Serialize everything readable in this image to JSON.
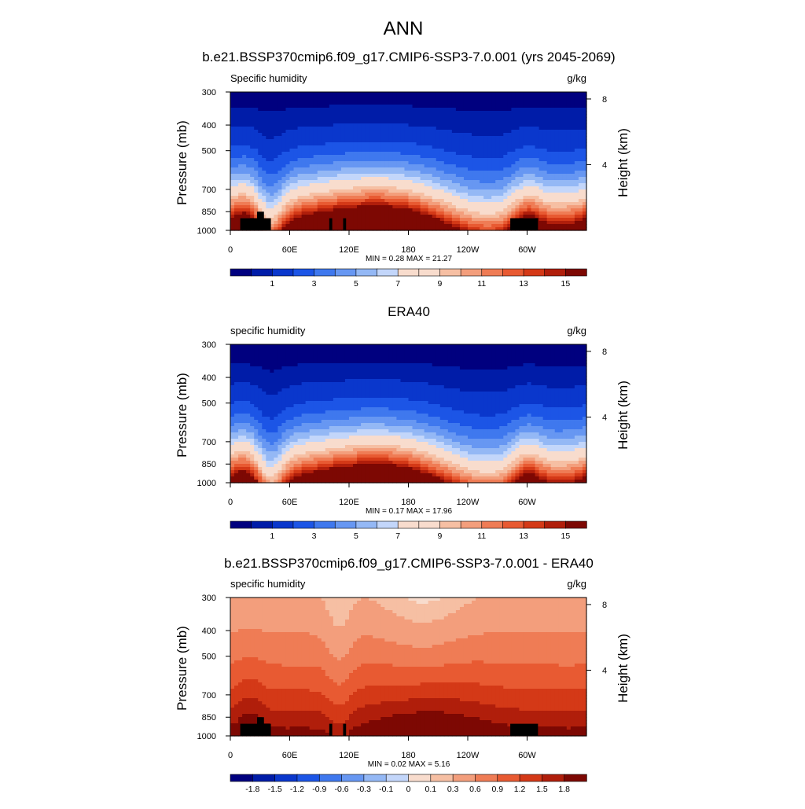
{
  "page": {
    "title": "ANN"
  },
  "chart_data": [
    {
      "type": "heatmap",
      "title": "b.e21.BSSP370cmip6.f09_g17.CMIP6-SSP3-7.0.001 (yrs 2045-2069)",
      "left_label": "Specific humidity",
      "right_label": "g/kg",
      "ylabel": "Pressure (mb)",
      "ylabel_right": "Height (km)",
      "x_ticks": [
        "0",
        "60E",
        "120E",
        "180",
        "120W",
        "60W"
      ],
      "x_tick_values": [
        0,
        60,
        120,
        180,
        240,
        300
      ],
      "xlim": [
        0,
        360
      ],
      "y_ticks": [
        "300",
        "400",
        "500",
        "700",
        "850",
        "1000"
      ],
      "y_tick_values": [
        300,
        400,
        500,
        700,
        850,
        1000
      ],
      "ylim": [
        1000,
        300
      ],
      "height_ticks": [
        "8",
        "4"
      ],
      "height_tick_values": [
        8,
        4
      ],
      "stats": {
        "min_label": "MIN =",
        "min": "0.28",
        "max_label": "MAX =",
        "max": "21.27"
      },
      "colorbar": {
        "levels": [
          0.5,
          1,
          2,
          3,
          4,
          5,
          6,
          7,
          8,
          9,
          10,
          11,
          12,
          13,
          14,
          15
        ],
        "labels": [
          "1",
          "3",
          "5",
          "7",
          "9",
          "11",
          "13",
          "15"
        ],
        "label_values": [
          1,
          3,
          5,
          7,
          9,
          11,
          13,
          15
        ]
      },
      "field": "model"
    },
    {
      "type": "heatmap",
      "title": "ERA40",
      "left_label": "specific humidity",
      "right_label": "g/kg",
      "ylabel": "Pressure (mb)",
      "ylabel_right": "Height (km)",
      "x_ticks": [
        "0",
        "60E",
        "120E",
        "180",
        "120W",
        "60W"
      ],
      "x_tick_values": [
        0,
        60,
        120,
        180,
        240,
        300
      ],
      "xlim": [
        0,
        360
      ],
      "y_ticks": [
        "300",
        "400",
        "500",
        "700",
        "850",
        "1000"
      ],
      "y_tick_values": [
        300,
        400,
        500,
        700,
        850,
        1000
      ],
      "ylim": [
        1000,
        300
      ],
      "height_ticks": [
        "8",
        "4"
      ],
      "height_tick_values": [
        8,
        4
      ],
      "stats": {
        "min_label": "MIN =",
        "min": "0.17",
        "max_label": "MAX =",
        "max": "17.96"
      },
      "colorbar": {
        "levels": [
          0.5,
          1,
          2,
          3,
          4,
          5,
          6,
          7,
          8,
          9,
          10,
          11,
          12,
          13,
          14,
          15
        ],
        "labels": [
          "1",
          "3",
          "5",
          "7",
          "9",
          "11",
          "13",
          "15"
        ],
        "label_values": [
          1,
          3,
          5,
          7,
          9,
          11,
          13,
          15
        ]
      },
      "field": "obs"
    },
    {
      "type": "heatmap",
      "title": "b.e21.BSSP370cmip6.f09_g17.CMIP6-SSP3-7.0.001 - ERA40",
      "left_label": "specific humidity",
      "right_label": "g/kg",
      "ylabel": "Pressure (mb)",
      "ylabel_right": "Height (km)",
      "x_ticks": [
        "0",
        "60E",
        "120E",
        "180",
        "120W",
        "60W"
      ],
      "x_tick_values": [
        0,
        60,
        120,
        180,
        240,
        300
      ],
      "xlim": [
        0,
        360
      ],
      "y_ticks": [
        "300",
        "400",
        "500",
        "700",
        "850",
        "1000"
      ],
      "y_tick_values": [
        300,
        400,
        500,
        700,
        850,
        1000
      ],
      "ylim": [
        1000,
        300
      ],
      "height_ticks": [
        "8",
        "4"
      ],
      "height_tick_values": [
        8,
        4
      ],
      "stats": {
        "min_label": "MIN =",
        "min": "0.02",
        "max_label": "MAX =",
        "max": "5.16"
      },
      "colorbar": {
        "levels": [
          -1.8,
          -1.5,
          -1.2,
          -0.9,
          -0.6,
          -0.3,
          -0.1,
          0,
          0.1,
          0.3,
          0.6,
          0.9,
          1.2,
          1.5,
          1.8
        ],
        "labels": [
          "-1.8",
          "-1.5",
          "-1.2",
          "-0.9",
          "-0.6",
          "-0.3",
          "-0.1",
          "0",
          "0.1",
          "0.3",
          "0.6",
          "0.9",
          "1.2",
          "1.5",
          "1.8"
        ],
        "label_values": [
          -1.8,
          -1.5,
          -1.2,
          -0.9,
          -0.6,
          -0.3,
          -0.1,
          0,
          0.1,
          0.3,
          0.6,
          0.9,
          1.2,
          1.5,
          1.8
        ]
      },
      "field": "diff"
    }
  ],
  "colors": {
    "palette": [
      "#00007f",
      "#001ca8",
      "#0a37cc",
      "#1c55e6",
      "#3f78ee",
      "#6797f2",
      "#94b8f5",
      "#c3d6fa",
      "#f8dccd",
      "#f6bfa3",
      "#f39e7c",
      "#ef7c55",
      "#e85a32",
      "#d43917",
      "#b01e0b",
      "#7d0803"
    ],
    "mask": "#000000"
  },
  "terrain_mask": [
    {
      "lon": [
        10,
        41
      ],
      "p_top": 900
    },
    {
      "lon": [
        27,
        34
      ],
      "p_top": 850
    },
    {
      "lon": [
        100,
        103
      ],
      "p_top": 900
    },
    {
      "lon": [
        114,
        117
      ],
      "p_top": 900
    },
    {
      "lon": [
        283,
        311
      ],
      "p_top": 900
    }
  ]
}
